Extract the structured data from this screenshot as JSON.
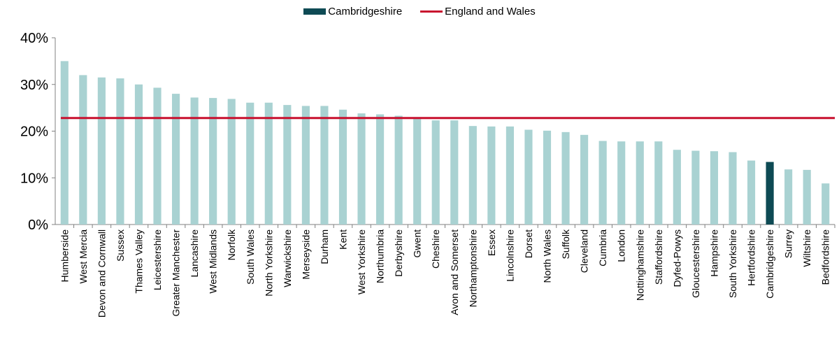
{
  "chart_data": {
    "type": "bar",
    "title": "",
    "xlabel": "",
    "ylabel": "",
    "ylim": [
      0,
      0.4
    ],
    "yticks": [
      "0%",
      "10%",
      "20%",
      "30%",
      "40%"
    ],
    "ytick_values": [
      0,
      0.1,
      0.2,
      0.3,
      0.4
    ],
    "grid": false,
    "legend_position": "top-center",
    "categories": [
      "Humberside",
      "West Mercia",
      "Devon and Cornwall",
      "Sussex",
      "Thames Valley",
      "Leicestershire",
      "Greater Manchester",
      "Lancashire",
      "West Midlands",
      "Norfolk",
      "South Wales",
      "North Yorkshire",
      "Warwickshire",
      "Merseyside",
      "Durham",
      "Kent",
      "West Yorkshire",
      "Northumbria",
      "Derbyshire",
      "Gwent",
      "Cheshire",
      "Avon and Somerset",
      "Northamptonshire",
      "Essex",
      "Lincolnshire",
      "Dorset",
      "North Wales",
      "Suffolk",
      "Cleveland",
      "Cumbria",
      "London",
      "Nottinghamshire",
      "Staffordshire",
      "Dyfed-Powys",
      "Gloucestershire",
      "Hampshire",
      "South Yorkshire",
      "Hertfordshire",
      "Cambridgeshire",
      "Surrey",
      "Wiltshire",
      "Bedfordshire"
    ],
    "values": [
      0.35,
      0.32,
      0.315,
      0.313,
      0.3,
      0.293,
      0.28,
      0.272,
      0.271,
      0.269,
      0.261,
      0.261,
      0.256,
      0.254,
      0.254,
      0.246,
      0.238,
      0.236,
      0.233,
      0.23,
      0.223,
      0.223,
      0.211,
      0.21,
      0.21,
      0.203,
      0.201,
      0.198,
      0.192,
      0.179,
      0.178,
      0.178,
      0.178,
      0.16,
      0.158,
      0.157,
      0.155,
      0.137,
      0.134,
      0.118,
      0.117,
      0.088
    ],
    "highlight_category": "Cambridgeshire",
    "reference_line": {
      "name": "England and Wales",
      "value": 0.228
    },
    "series": [
      {
        "name": "Cambridgeshire",
        "color": "#0e4a54"
      },
      {
        "name": "England and Wales",
        "color": "#c8102e"
      }
    ],
    "bar_color": "#a9d2d2",
    "highlight_color": "#0e4a54",
    "line_color": "#c8102e"
  }
}
